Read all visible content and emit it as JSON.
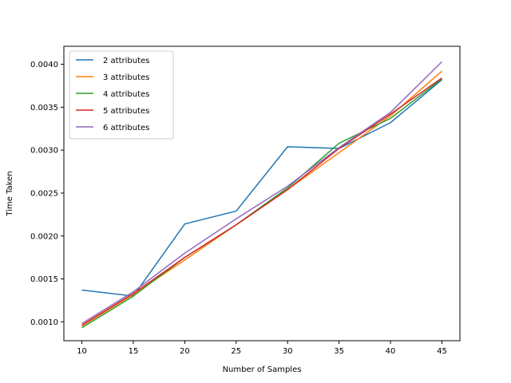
{
  "chart_data": {
    "type": "line",
    "title": "",
    "xlabel": "Number of Samples",
    "ylabel": "Time Taken",
    "x": [
      10,
      15,
      20,
      25,
      30,
      35,
      40,
      45
    ],
    "xticks": [
      10,
      15,
      20,
      25,
      30,
      35,
      40,
      45
    ],
    "xtick_labels": [
      "10",
      "15",
      "20",
      "25",
      "30",
      "35",
      "40",
      "45"
    ],
    "yticks": [
      0.001,
      0.0015,
      0.002,
      0.0025,
      0.003,
      0.0035,
      0.004
    ],
    "ytick_labels": [
      "0.0010",
      "0.0015",
      "0.0020",
      "0.0025",
      "0.0030",
      "0.0035",
      "0.0040"
    ],
    "xlim": [
      8.25,
      46.75
    ],
    "ylim": [
      0.00078,
      0.00421
    ],
    "grid": false,
    "legend_position": "top-left",
    "series": [
      {
        "name": "2 attributes",
        "color": "#1f77b4",
        "values": [
          0.00137,
          0.0013,
          0.00214,
          0.00229,
          0.00304,
          0.00302,
          0.00332,
          0.00382
        ]
      },
      {
        "name": "3 attributes",
        "color": "#ff7f0e",
        "values": [
          0.00095,
          0.00132,
          0.00172,
          0.00213,
          0.00254,
          0.00297,
          0.0034,
          0.00392
        ]
      },
      {
        "name": "4 attributes",
        "color": "#2ca02c",
        "values": [
          0.00093,
          0.0013,
          0.00175,
          0.00213,
          0.00256,
          0.00308,
          0.00337,
          0.00383
        ]
      },
      {
        "name": "5 attributes",
        "color": "#d62728",
        "values": [
          0.00096,
          0.00133,
          0.00175,
          0.00213,
          0.00254,
          0.00302,
          0.00342,
          0.00384
        ]
      },
      {
        "name": "6 attributes",
        "color": "#9467bd",
        "values": [
          0.00098,
          0.00135,
          0.0018,
          0.0022,
          0.00258,
          0.00303,
          0.00344,
          0.00403
        ]
      }
    ]
  }
}
